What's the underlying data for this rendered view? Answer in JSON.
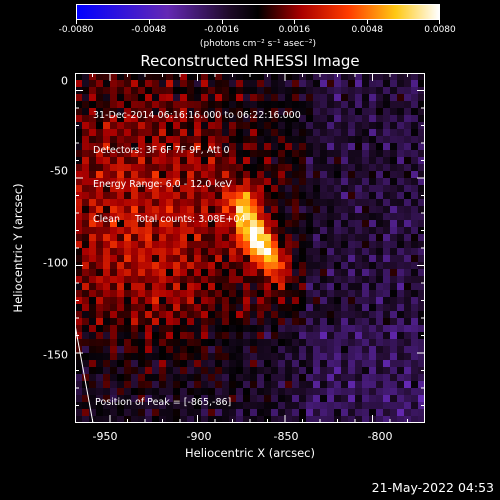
{
  "colorbar": {
    "tick_labels": [
      "-0.0080",
      "-0.0048",
      "-0.0016",
      "0.0016",
      "0.0048",
      "0.0080"
    ],
    "units": "(photons cm⁻² s⁻¹ asec⁻²)",
    "range": [
      -0.008,
      0.008
    ]
  },
  "plot": {
    "title": "Reconstructed RHESSI Image",
    "info_lines": [
      "31-Dec-2014 06:16:16.000 to 06:22:16.000",
      "Detectors: 3F 6F 7F 9F, Att 0",
      "Energy Range: 6.0 - 12.0 keV",
      "Clean     Total counts: 3.08E+04"
    ],
    "peak_label": "Position of Peak = [-865,-86]",
    "xlabel": "Heliocentric X (arcsec)",
    "ylabel": "Heliocentric Y (arcsec)",
    "xticks": [
      "-950",
      "-900",
      "-850",
      "-800"
    ],
    "yticks": [
      "0",
      "-50",
      "-100",
      "-150"
    ],
    "xrange": [
      -970,
      -770
    ],
    "yrange": [
      -190,
      10
    ],
    "peak_position": [
      -865,
      -86
    ]
  },
  "footer": {
    "timestamp": "21-May-2022 04:53"
  },
  "colors": {
    "background": "#000000",
    "foreground": "#ffffff"
  }
}
